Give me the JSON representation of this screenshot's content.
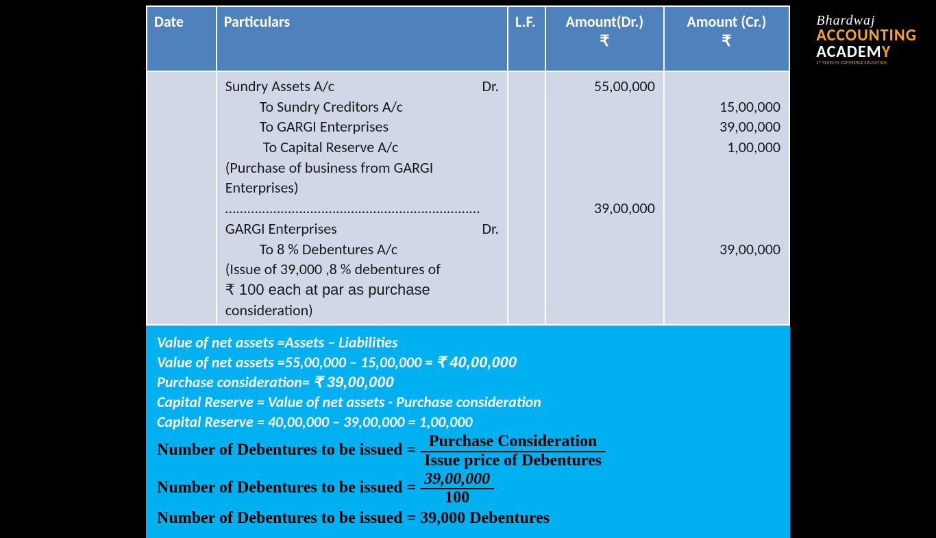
{
  "logo": {
    "line1": "Bhardwaj",
    "line2_a": "ACCOUNT",
    "line2_b": "ING",
    "line3_a": "ACADEM",
    "line3_b": "Y",
    "tagline": "27 YEARS IN COMMERCE EDUCATION",
    "colors": {
      "orange": "#f5a623",
      "white": "#ffffff"
    }
  },
  "table": {
    "header_bg": "#4f81bd",
    "body_bg": "#d0d8e8",
    "border_color": "#ffffff",
    "columns": {
      "date": "Date",
      "particulars": "Particulars",
      "lf": "L.F.",
      "dr": "Amount(Dr.)",
      "cr": "Amount (Cr.)",
      "rupee": "₹"
    },
    "entries": {
      "e1_main": "Sundry Assets A/c",
      "e1_dr": "Dr.",
      "e1_to1": "To Sundry Creditors A/c",
      "e1_to2": "To GARGI Enterprises",
      "e1_to3": "To Capital Reserve A/c",
      "e1_narr1": "(Purchase of business from GARGI",
      "e1_narr2": "Enterprises)",
      "dots": "……………………………………………………………",
      "e2_main": "GARGI Enterprises",
      "e2_dr": "Dr.",
      "e2_to1": "To 8 % Debentures A/c",
      "e2_narr1": "(Issue of 39,000 ,8 % debentures of",
      "e2_narr2": "₹ 100 each at par as purchase",
      "e2_narr3": "consideration)"
    },
    "amounts": {
      "dr1": "55,00,000",
      "cr1": "15,00,000",
      "cr2": "39,00,000",
      "cr3": "1,00,000",
      "dr2": "39,00,000",
      "cr4": "39,00,000"
    }
  },
  "calc": {
    "bg": "#00b0f0",
    "l1a": "Value of net assets ",
    "l1b": "=Assets – Liabilities",
    "l2a": "Value of net assets ",
    "l2b": "=55,00,000 – 15,00,000 = ",
    "l2c": "₹  40,00,000",
    "l3a": "Purchase consideration= ",
    "l3b": "₹  39,00,000",
    "l4": "Capital Reserve = Value of net assets - Purchase consideration",
    "l5": "Capital Reserve = 40,00,000 – 39,00,000 = 1,00,000",
    "eq1_lhs": "Number of Debentures to be issued",
    "eq_sign": " = ",
    "eq1_num": "Purchase Consideration",
    "eq1_den": "Issue price of Debentures",
    "eq2_num": "39,00,000",
    "eq2_den": "100",
    "eq3_rhs": "39,000 Debentures"
  }
}
